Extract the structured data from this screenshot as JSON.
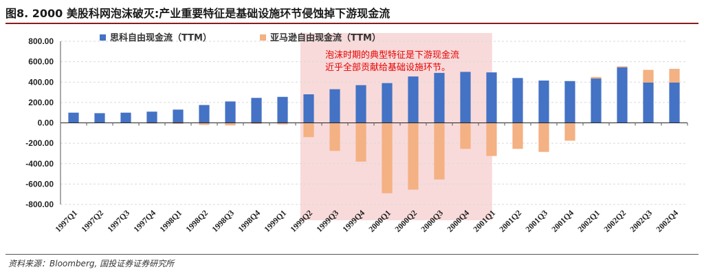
{
  "title": "图8. 2000 美股科网泡沫破灭:产业重要特征是基础设施环节侵蚀掉下游现金流",
  "source": "资料来源：Bloomberg, 国投证券证券研究所",
  "colors": {
    "cisco": "#4472C4",
    "amazon": "#F4B183",
    "highlight": "#F8DADA",
    "annotation": "#E60000"
  },
  "chart_data": {
    "type": "bar",
    "categories": [
      "1997Q1",
      "1997Q2",
      "1997Q3",
      "1997Q4",
      "1998Q1",
      "1998Q2",
      "1998Q3",
      "1998Q4",
      "1999Q1",
      "1999Q2",
      "1999Q3",
      "1999Q4",
      "2000Q1",
      "2000Q2",
      "2000Q3",
      "2000Q4",
      "2001Q1",
      "2001Q2",
      "2001Q3",
      "2001Q4",
      "2002Q1",
      "2002Q2",
      "2002Q3",
      "2002Q4"
    ],
    "series": [
      {
        "name": "思科自由现金流（TTM）",
        "color": "#4472C4",
        "values": [
          100,
          95,
          100,
          110,
          130,
          175,
          210,
          245,
          255,
          280,
          330,
          370,
          390,
          455,
          490,
          500,
          495,
          440,
          415,
          410,
          435,
          545,
          395,
          395
        ]
      },
      {
        "name": "亚马逊自由现金流（TTM）",
        "color": "#F4B183",
        "values": [
          0,
          0,
          0,
          -2,
          -10,
          -20,
          -25,
          -10,
          -15,
          -140,
          -275,
          -380,
          -690,
          -655,
          -555,
          -255,
          -325,
          -255,
          -285,
          -175,
          450,
          555,
          520,
          530
        ]
      }
    ],
    "ylim": [
      -800,
      800
    ],
    "yticks": [
      "800.00",
      "600.00",
      "400.00",
      "200.00",
      "0.00",
      "-200.00",
      "-400.00",
      "-600.00",
      "-800.00"
    ],
    "ytick_values": [
      800,
      600,
      400,
      200,
      0,
      -200,
      -400,
      -600,
      -800
    ],
    "highlight_range": [
      "1999Q2",
      "2001Q1"
    ],
    "annotation": [
      "泡沫时期的典型特征是下游现金流",
      "近乎全部贡献给基础设施环节。"
    ],
    "legend": "top"
  }
}
